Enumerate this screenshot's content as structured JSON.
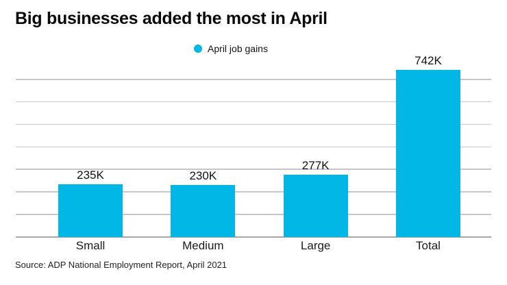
{
  "title": "Big businesses added the most in April",
  "legend": {
    "label": "April job gains",
    "dot_color": "#00b7e6"
  },
  "source": "Source: ADP National Employment Report, April 2021",
  "chart_data": {
    "type": "bar",
    "title": "Big businesses added the most in April",
    "legend_entries": [
      "April job gains"
    ],
    "legend_position": "top-center",
    "categories": [
      "Small",
      "Medium",
      "Large",
      "Total"
    ],
    "values": [
      235,
      230,
      277,
      742
    ],
    "value_labels": [
      "235K",
      "230K",
      "277K",
      "742K"
    ],
    "value_suffix": "K",
    "xlabel": "",
    "ylabel": "",
    "ylim": [
      0,
      700
    ],
    "grid_step": 100,
    "grid": "horizontal",
    "y_tick_labels_visible": false,
    "bar_color": "#00b7e6",
    "background_color": "#ffffff"
  }
}
